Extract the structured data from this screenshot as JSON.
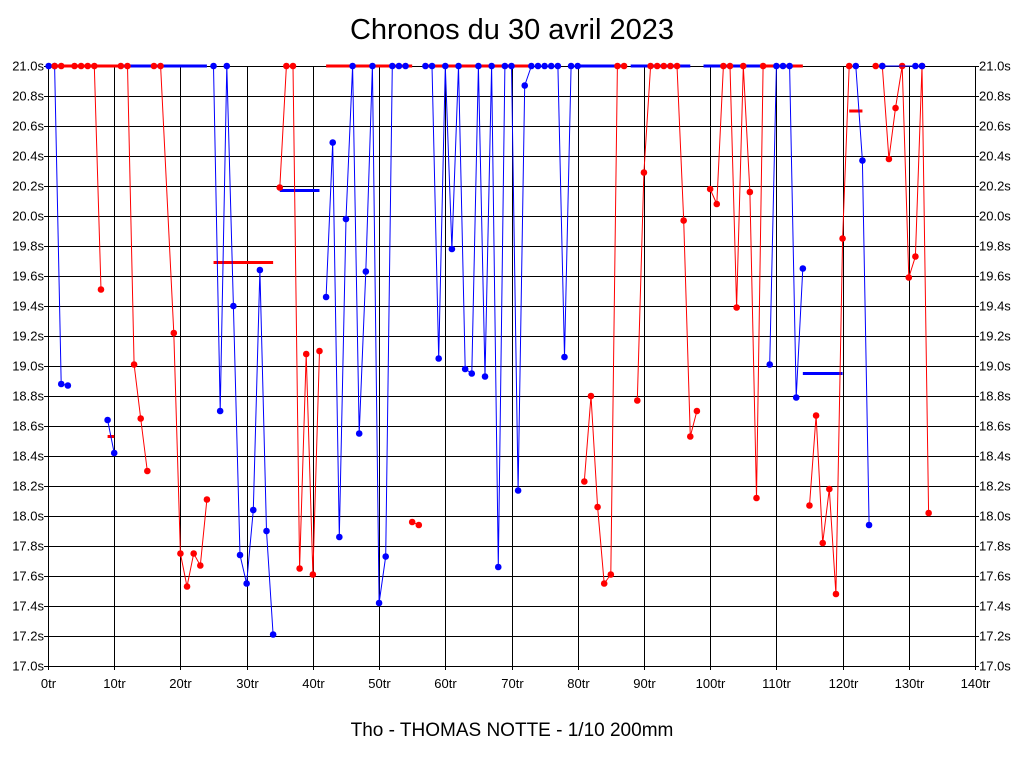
{
  "chart_data": {
    "type": "line",
    "title": "Chronos du 30 avril 2023",
    "xlabel": "Tho - THOMAS NOTTE - 1/10 200mm",
    "ylabel": "",
    "xlim": [
      0,
      140
    ],
    "ylim": [
      17.0,
      21.0
    ],
    "grid": true,
    "x_ticks": [
      "0tr",
      "10tr",
      "20tr",
      "30tr",
      "40tr",
      "50tr",
      "60tr",
      "70tr",
      "80tr",
      "90tr",
      "100tr",
      "110tr",
      "120tr",
      "130tr",
      "140tr"
    ],
    "y_ticks": [
      "21.0s",
      "20.8s",
      "20.6s",
      "20.4s",
      "20.2s",
      "20.0s",
      "19.8s",
      "19.6s",
      "19.4s",
      "19.2s",
      "19.0s",
      "18.8s",
      "18.6s",
      "18.4s",
      "18.2s",
      "18.0s",
      "17.8s",
      "17.6s",
      "17.4s",
      "17.2s",
      "17.0s"
    ],
    "colors": {
      "red": "#ff0000",
      "blue": "#0000ff",
      "grid": "#000000"
    },
    "series": [
      {
        "name": "segment-1",
        "color": "blue",
        "points": [
          [
            0.1,
            21.0
          ],
          [
            1.0,
            21.0
          ],
          [
            2.0,
            18.88
          ],
          [
            3.0,
            18.87
          ]
        ]
      },
      {
        "name": "segment-2",
        "color": "red",
        "points": [
          [
            1.0,
            21.0
          ],
          [
            2.0,
            21.0
          ],
          [
            4.0,
            21.0
          ],
          [
            5.0,
            21.0
          ],
          [
            6.0,
            21.0
          ],
          [
            7.0,
            21.0
          ],
          [
            8.0,
            19.51
          ]
        ]
      },
      {
        "name": "segment-3",
        "color": "blue",
        "points": [
          [
            9.0,
            18.64
          ],
          [
            10.0,
            18.42
          ]
        ]
      },
      {
        "name": "segment-4",
        "color": "red",
        "points": [
          [
            11.0,
            21.0
          ],
          [
            12.0,
            21.0
          ],
          [
            13.0,
            19.01
          ],
          [
            14.0,
            18.65
          ],
          [
            15.0,
            18.3
          ]
        ]
      },
      {
        "name": "segment-5",
        "color": "red",
        "points": [
          [
            16.0,
            21.0
          ],
          [
            17.0,
            21.0
          ],
          [
            19.0,
            19.22
          ],
          [
            20.0,
            17.75
          ],
          [
            21.0,
            17.53
          ],
          [
            22.0,
            17.75
          ],
          [
            23.0,
            17.67
          ],
          [
            24.0,
            18.11
          ]
        ]
      },
      {
        "name": "segment-6",
        "color": "blue",
        "points": [
          [
            25.0,
            21.0
          ],
          [
            26.0,
            18.7
          ],
          [
            27.0,
            21.0
          ],
          [
            28.0,
            19.4
          ],
          [
            29.0,
            17.74
          ],
          [
            30.0,
            17.55
          ],
          [
            31.0,
            18.04
          ],
          [
            32.0,
            19.64
          ],
          [
            33.0,
            17.9
          ],
          [
            34.0,
            17.21
          ]
        ]
      },
      {
        "name": "segment-7",
        "color": "red",
        "points": [
          [
            35.0,
            20.19
          ],
          [
            36.0,
            21.0
          ],
          [
            37.0,
            21.0
          ],
          [
            38.0,
            17.65
          ],
          [
            39.0,
            19.08
          ],
          [
            40.0,
            17.61
          ],
          [
            41.0,
            19.1
          ]
        ]
      },
      {
        "name": "segment-8",
        "color": "blue",
        "points": [
          [
            42.0,
            19.46
          ],
          [
            43.0,
            20.49
          ],
          [
            44.0,
            17.86
          ],
          [
            45.0,
            19.98
          ],
          [
            46.0,
            21.0
          ],
          [
            47.0,
            18.55
          ],
          [
            48.0,
            19.63
          ],
          [
            49.0,
            21.0
          ],
          [
            50.0,
            17.42
          ],
          [
            51.0,
            17.73
          ],
          [
            52.0,
            21.0
          ],
          [
            53.0,
            21.0
          ],
          [
            54.0,
            21.0
          ]
        ]
      },
      {
        "name": "segment-9",
        "color": "red",
        "points": [
          [
            55.0,
            17.96
          ],
          [
            56.0,
            17.94
          ]
        ]
      },
      {
        "name": "segment-10",
        "color": "blue",
        "points": [
          [
            57.0,
            21.0
          ],
          [
            58.0,
            21.0
          ],
          [
            59.0,
            19.05
          ],
          [
            60.0,
            21.0
          ],
          [
            61.0,
            19.78
          ],
          [
            62.0,
            21.0
          ],
          [
            63.0,
            18.98
          ],
          [
            64.0,
            18.95
          ],
          [
            65.0,
            21.0
          ],
          [
            66.0,
            18.93
          ],
          [
            67.0,
            21.0
          ],
          [
            68.0,
            17.66
          ],
          [
            69.0,
            21.0
          ],
          [
            70.0,
            21.0
          ],
          [
            71.0,
            18.17
          ],
          [
            72.0,
            20.87
          ],
          [
            73.0,
            21.0
          ]
        ]
      },
      {
        "name": "segment-11",
        "color": "blue",
        "points": [
          [
            74.0,
            21.0
          ],
          [
            75.0,
            21.0
          ],
          [
            76.0,
            21.0
          ],
          [
            77.0,
            21.0
          ],
          [
            78.0,
            19.06
          ],
          [
            79.0,
            21.0
          ],
          [
            80.0,
            21.0
          ]
        ]
      },
      {
        "name": "segment-12",
        "color": "red",
        "points": [
          [
            81.0,
            18.23
          ],
          [
            82.0,
            18.8
          ],
          [
            83.0,
            18.06
          ],
          [
            84.0,
            17.55
          ],
          [
            85.0,
            17.61
          ],
          [
            86.0,
            21.0
          ],
          [
            87.0,
            21.0
          ]
        ]
      },
      {
        "name": "segment-13",
        "color": "red",
        "points": [
          [
            89.0,
            18.77
          ],
          [
            90.0,
            20.29
          ],
          [
            91.0,
            21.0
          ],
          [
            92.0,
            21.0
          ],
          [
            93.0,
            21.0
          ],
          [
            94.0,
            21.0
          ],
          [
            95.0,
            21.0
          ],
          [
            96.0,
            19.97
          ],
          [
            97.0,
            18.53
          ],
          [
            98.0,
            18.7
          ]
        ]
      },
      {
        "name": "segment-14",
        "color": "red",
        "points": [
          [
            100.0,
            20.18
          ],
          [
            101.0,
            20.08
          ],
          [
            102.0,
            21.0
          ],
          [
            103.0,
            21.0
          ],
          [
            104.0,
            19.39
          ],
          [
            105.0,
            21.0
          ],
          [
            106.0,
            20.16
          ],
          [
            107.0,
            18.12
          ],
          [
            108.0,
            21.0
          ]
        ]
      },
      {
        "name": "segment-15",
        "color": "blue",
        "points": [
          [
            109.0,
            19.01
          ],
          [
            110.0,
            21.0
          ],
          [
            111.0,
            21.0
          ],
          [
            112.0,
            21.0
          ],
          [
            113.0,
            18.79
          ],
          [
            114.0,
            19.65
          ]
        ]
      },
      {
        "name": "segment-16",
        "color": "red",
        "points": [
          [
            115.0,
            18.07
          ],
          [
            116.0,
            18.67
          ],
          [
            117.0,
            17.82
          ],
          [
            118.0,
            18.18
          ],
          [
            119.0,
            17.48
          ],
          [
            120.0,
            19.85
          ],
          [
            121.0,
            21.0
          ]
        ]
      },
      {
        "name": "segment-17",
        "color": "blue",
        "points": [
          [
            122.0,
            21.0
          ],
          [
            123.0,
            20.37
          ],
          [
            124.0,
            17.94
          ]
        ]
      },
      {
        "name": "segment-18",
        "color": "red",
        "points": [
          [
            125.0,
            21.0
          ],
          [
            126.0,
            21.0
          ],
          [
            127.0,
            20.38
          ],
          [
            128.0,
            20.72
          ],
          [
            129.0,
            21.0
          ],
          [
            130.0,
            19.59
          ],
          [
            131.0,
            19.73
          ],
          [
            132.0,
            21.0
          ],
          [
            133.0,
            18.02
          ]
        ]
      },
      {
        "name": "segment-19",
        "color": "blue",
        "points": [
          [
            126.0,
            21.0
          ],
          [
            131.0,
            21.0
          ],
          [
            132.0,
            21.0
          ]
        ]
      }
    ],
    "references": [
      {
        "color": "red",
        "x1": 1.0,
        "x2": 12.0,
        "y": 21.0
      },
      {
        "color": "blue",
        "x1": 11.0,
        "x2": 24.0,
        "y": 21.0
      },
      {
        "color": "red",
        "x1": 9.0,
        "x2": 10.0,
        "y": 18.53
      },
      {
        "color": "red",
        "x1": 25.0,
        "x2": 34.0,
        "y": 19.69
      },
      {
        "color": "blue",
        "x1": 35.0,
        "x2": 41.0,
        "y": 20.17
      },
      {
        "color": "red",
        "x1": 42.0,
        "x2": 55.0,
        "y": 21.0
      },
      {
        "color": "red",
        "x1": 57.0,
        "x2": 73.0,
        "y": 21.0
      },
      {
        "color": "blue",
        "x1": 80.0,
        "x2": 87.0,
        "y": 21.0
      },
      {
        "color": "blue",
        "x1": 88.0,
        "x2": 97.0,
        "y": 21.0
      },
      {
        "color": "blue",
        "x1": 99.0,
        "x2": 108.0,
        "y": 21.0
      },
      {
        "color": "red",
        "x1": 108.0,
        "x2": 114.0,
        "y": 21.0
      },
      {
        "color": "blue",
        "x1": 114.0,
        "x2": 120.0,
        "y": 18.95
      },
      {
        "color": "red",
        "x1": 121.0,
        "x2": 123.0,
        "y": 20.7
      }
    ]
  }
}
